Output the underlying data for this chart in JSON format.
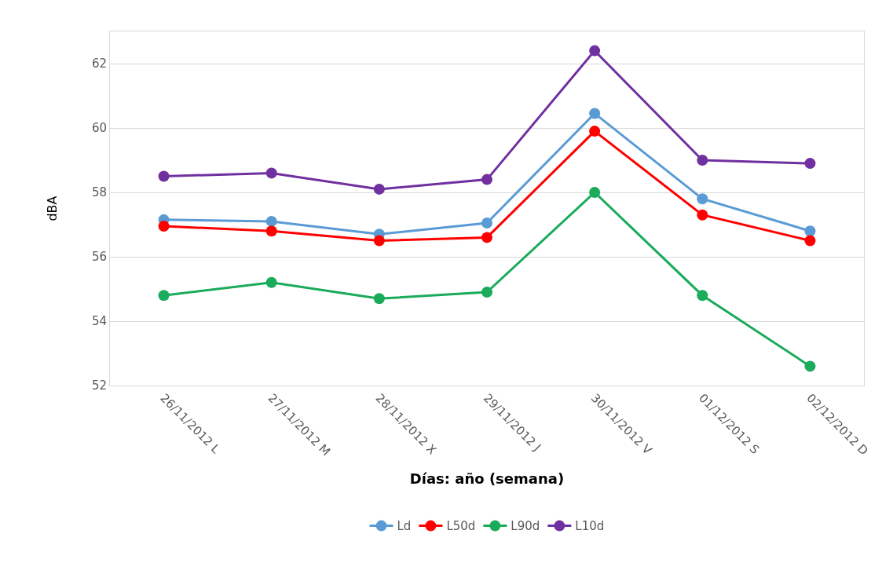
{
  "chart_data": {
    "type": "line",
    "xlabel": "Días: año (semana)",
    "ylabel": "dBA",
    "categories": [
      "26/11/2012 L",
      "27/11/2012 M",
      "28/11/2012 X",
      "29/11/2012 J",
      "30/11/2012 V",
      "01/12/2012 S",
      "02/12/2012 D"
    ],
    "series": [
      {
        "name": "Ld",
        "color": "#5b9bd5",
        "values": [
          57.15,
          57.1,
          56.7,
          57.05,
          60.45,
          57.8,
          56.8
        ]
      },
      {
        "name": "L50d",
        "color": "#ff0000",
        "values": [
          56.95,
          56.8,
          56.5,
          56.6,
          59.9,
          57.3,
          56.5
        ]
      },
      {
        "name": "L90d",
        "color": "#1aab5b",
        "values": [
          54.8,
          55.2,
          54.7,
          54.9,
          58.0,
          54.8,
          52.6
        ]
      },
      {
        "name": "L10d",
        "color": "#7030a0",
        "values": [
          58.5,
          58.6,
          58.1,
          58.4,
          62.4,
          59.0,
          58.9
        ]
      }
    ],
    "ylim": [
      52,
      63
    ],
    "yticks": [
      52,
      54,
      56,
      58,
      60,
      62
    ],
    "grid": "y",
    "legend": "bottom",
    "marker": "circle",
    "line_style": "solid"
  }
}
